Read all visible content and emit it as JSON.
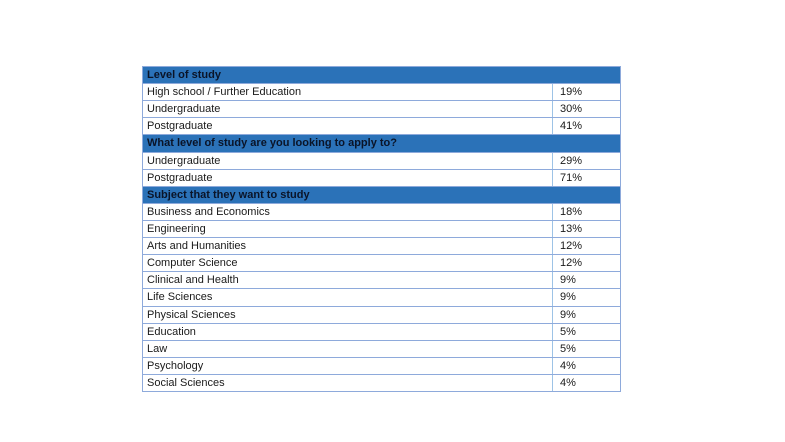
{
  "page": {
    "background_color": "#FFFFFF"
  },
  "table_style": {
    "header_background": "#2B72B8",
    "header_text_color": "#0A1428",
    "row_text_color": "#1A1A1A",
    "border_color": "#8EAADB",
    "row_background": "#FFFFFF"
  },
  "chart_data": {
    "type": "table",
    "sections": [
      {
        "header": "Level of study",
        "rows": [
          [
            "High school / Further Education",
            "19%"
          ],
          [
            "Undergraduate",
            "30%"
          ],
          [
            "Postgraduate",
            "41%"
          ]
        ]
      },
      {
        "header": "What level of study are you looking to apply to?",
        "rows": [
          [
            "Undergraduate",
            "29%"
          ],
          [
            "Postgraduate",
            "71%"
          ]
        ]
      },
      {
        "header": "Subject that they want to study",
        "rows": [
          [
            "Business and Economics",
            "18%"
          ],
          [
            "Engineering",
            "13%"
          ],
          [
            "Arts and Humanities",
            "12%"
          ],
          [
            "Computer Science",
            "12%"
          ],
          [
            "Clinical and Health",
            "9%"
          ],
          [
            "Life Sciences",
            "9%"
          ],
          [
            "Physical Sciences",
            "9%"
          ],
          [
            "Education",
            "5%"
          ],
          [
            "Law",
            "5%"
          ],
          [
            "Psychology",
            "4%"
          ],
          [
            "Social Sciences",
            "4%"
          ]
        ]
      }
    ]
  }
}
